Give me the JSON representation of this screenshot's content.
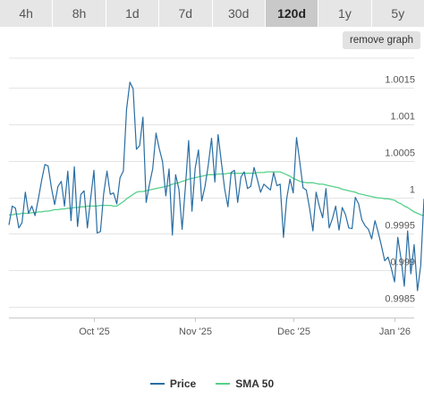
{
  "tabs": [
    {
      "label": "4h",
      "active": false
    },
    {
      "label": "8h",
      "active": false
    },
    {
      "label": "1d",
      "active": false
    },
    {
      "label": "7d",
      "active": false
    },
    {
      "label": "30d",
      "active": false
    },
    {
      "label": "120d",
      "active": true
    },
    {
      "label": "1y",
      "active": false
    },
    {
      "label": "5y",
      "active": false
    }
  ],
  "remove_graph_label": "remove graph",
  "colors": {
    "price": "#2a6ea3",
    "sma": "#55d08a",
    "grid": "#e4e4e4",
    "axis_text": "#555555"
  },
  "chart_data": {
    "type": "line",
    "title": "",
    "xlabel": "",
    "ylabel": "",
    "y_ticks": [
      "0.9985",
      "0.999",
      "0.9995",
      "1",
      "1.0005",
      "1.001",
      "1.0015"
    ],
    "y_tick_values": [
      0.9985,
      0.999,
      0.9995,
      1.0,
      1.0005,
      1.001,
      1.0015
    ],
    "ylim": [
      0.99835,
      1.00191
    ],
    "x_ticks": [
      "Oct '25",
      "Nov '25",
      "Dec '25",
      "Jan '26"
    ],
    "x_tick_values": [
      "2025-10-01",
      "2025-11-01",
      "2025-12-01",
      "2026-01-01"
    ],
    "x_range": [
      "2025-09-05",
      "2026-01-07"
    ],
    "grid": true,
    "legend_position": "bottom",
    "series": [
      {
        "name": "Price",
        "start": "2025-09-05",
        "step_days": 1,
        "values": [
          0.99962,
          0.99988,
          0.99985,
          0.99958,
          0.99965,
          1.00007,
          0.99978,
          0.99988,
          0.99975,
          0.99998,
          1.00023,
          1.00045,
          1.00043,
          1.00013,
          0.9999,
          1.00015,
          1.00022,
          0.99988,
          1.00036,
          0.99968,
          1.00042,
          0.9996,
          1.00004,
          1.00009,
          0.99958,
          0.99998,
          1.00037,
          0.99951,
          0.99953,
          1.00005,
          1.00036,
          1.00004,
          1.00006,
          0.99991,
          1.00027,
          1.00036,
          1.00121,
          1.00158,
          1.00149,
          1.00066,
          1.00071,
          1.0011,
          0.99993,
          1.00018,
          1.00039,
          1.00088,
          1.00067,
          1.00049,
          1.00002,
          1.00039,
          0.99948,
          1.00031,
          1.00011,
          0.99956,
          1.00015,
          1.00078,
          0.99981,
          1.0004,
          1.00065,
          0.99995,
          1.00015,
          1.00044,
          1.00081,
          1.00021,
          1.00086,
          1.00048,
          1.00012,
          0.99987,
          1.00034,
          1.00037,
          0.99993,
          1.00028,
          1.00035,
          1.00012,
          1.00015,
          1.00041,
          1.00025,
          1.00007,
          1.00018,
          1.00014,
          1.0001,
          1.00034,
          1.00016,
          1.00018,
          0.99945,
          0.99998,
          1.00025,
          1.00006,
          1.00082,
          1.00049,
          1.00013,
          1.0001,
          0.99985,
          0.99954,
          1.00007,
          0.99987,
          0.99972,
          1.00012,
          0.99958,
          0.99971,
          0.99988,
          0.99955,
          0.99986,
          0.99976,
          0.99958,
          0.99957,
          1.0,
          0.99991,
          0.99969,
          0.99961,
          0.99956,
          0.99943,
          0.99968,
          0.99952,
          0.99933,
          0.99913,
          0.99918,
          0.99903,
          0.99884,
          0.99945,
          0.99915,
          0.99878,
          0.99954,
          0.99895,
          0.99935,
          0.99872,
          0.99906,
          0.99998
        ]
      },
      {
        "name": "SMA 50",
        "start": "2025-09-05",
        "step_days": 1,
        "values": [
          0.99976,
          0.99976,
          0.99977,
          0.99977,
          0.99978,
          0.99978,
          0.99978,
          0.99979,
          0.99979,
          0.9998,
          0.9998,
          0.99981,
          0.99981,
          0.99982,
          0.99983,
          0.99983,
          0.99984,
          0.99984,
          0.99985,
          0.99985,
          0.99986,
          0.99986,
          0.99987,
          0.99987,
          0.99988,
          0.99988,
          0.99988,
          0.99988,
          0.99989,
          0.99989,
          0.99989,
          0.99989,
          0.99988,
          0.99988,
          0.99991,
          0.99994,
          0.99998,
          1.00001,
          1.00004,
          1.00007,
          1.00008,
          1.00008,
          1.00009,
          1.0001,
          1.00011,
          1.00012,
          1.00013,
          1.00014,
          1.00015,
          1.00016,
          1.00018,
          1.00019,
          1.0002,
          1.00022,
          1.00023,
          1.00025,
          1.00026,
          1.00027,
          1.00028,
          1.00029,
          1.0003,
          1.00031,
          1.00031,
          1.00031,
          1.00032,
          1.00032,
          1.00032,
          1.00033,
          1.00033,
          1.00033,
          1.00033,
          1.00033,
          1.00033,
          1.00033,
          1.00033,
          1.00033,
          1.00034,
          1.00034,
          1.00034,
          1.00035,
          1.00035,
          1.00035,
          1.00035,
          1.00035,
          1.00033,
          1.00031,
          1.00029,
          1.00026,
          1.00024,
          1.00022,
          1.00021,
          1.0002,
          1.0002,
          1.0002,
          1.00019,
          1.00018,
          1.00018,
          1.00017,
          1.00016,
          1.00015,
          1.00014,
          1.00013,
          1.00011,
          1.0001,
          1.00009,
          1.00008,
          1.00007,
          1.00005,
          1.00004,
          1.00003,
          1.00002,
          1.00001,
          1.0,
          0.99999,
          0.99999,
          0.99998,
          0.99998,
          0.99997,
          0.99996,
          0.99993,
          0.99991,
          0.99988,
          0.99986,
          0.99983,
          0.9998,
          0.99978,
          0.99976,
          0.99975
        ]
      }
    ]
  }
}
